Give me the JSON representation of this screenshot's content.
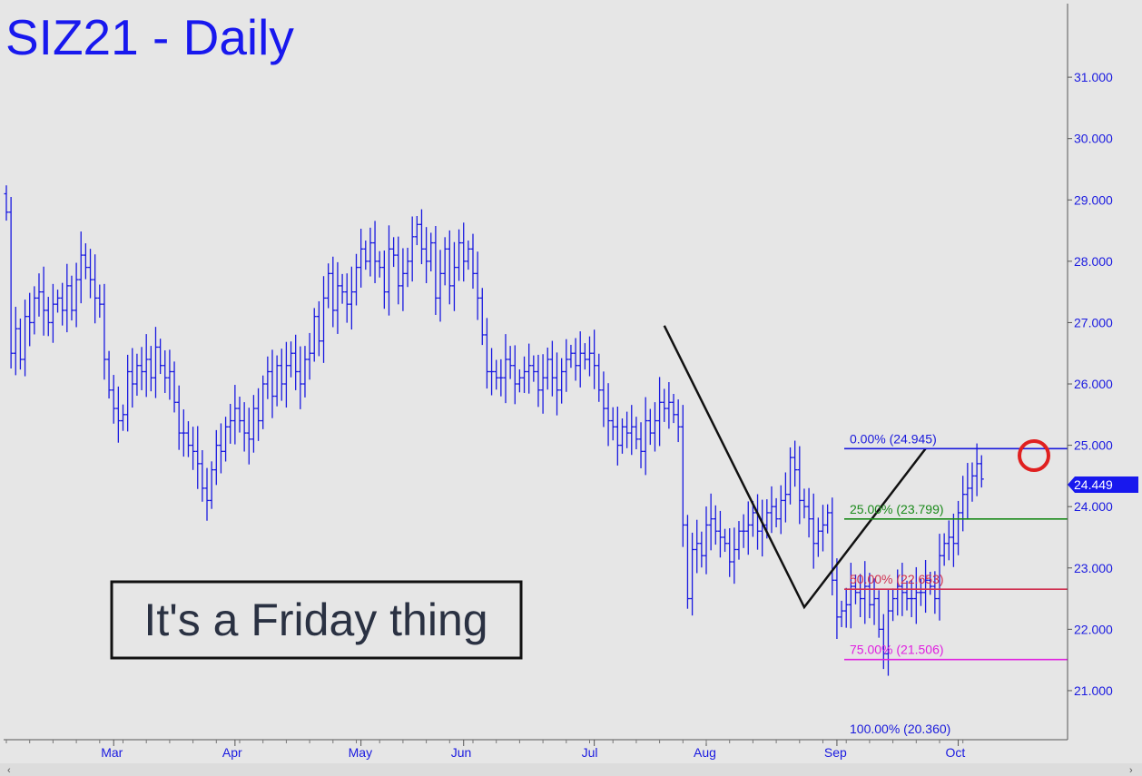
{
  "chart_data": {
    "type": "ohlc",
    "title": "SIZ21 - Daily",
    "annotation_box": "It's a Friday thing",
    "last_price_label": "24.449",
    "ylim": [
      20.2,
      32.2
    ],
    "y_ticks": [
      "21.000",
      "22.000",
      "23.000",
      "24.000",
      "25.000",
      "26.000",
      "27.000",
      "28.000",
      "29.000",
      "30.000",
      "31.000"
    ],
    "x_ticks": [
      "Mar",
      "Apr",
      "May",
      "Jun",
      "Jul",
      "Aug",
      "Sep",
      "Oct"
    ],
    "fib_levels": [
      {
        "label": "0.00% (24.945)",
        "price": 24.945,
        "color": "#1a1adc"
      },
      {
        "label": "25.00% (23.799)",
        "price": 23.799,
        "color": "#1a8a1a"
      },
      {
        "label": "50.00% (22.653)",
        "price": 22.653,
        "color": "#d03050"
      },
      {
        "label": "75.00% (21.506)",
        "price": 21.506,
        "color": "#e020e0"
      },
      {
        "label": "100.00% (20.360)",
        "price": 20.36,
        "color": "#1a1adc"
      }
    ],
    "pattern_points": [
      {
        "bar": 141,
        "price": 26.95
      },
      {
        "bar": 171,
        "price": 22.36
      },
      {
        "bar": 197,
        "price": 24.945
      }
    ],
    "closes": [
      28.8,
      26.5,
      26.9,
      26.4,
      27.1,
      27.0,
      27.4,
      27.5,
      27.2,
      27.0,
      27.3,
      27.4,
      27.2,
      27.6,
      27.2,
      27.7,
      28.1,
      27.9,
      27.7,
      27.4,
      27.3,
      26.4,
      25.9,
      25.6,
      25.4,
      25.5,
      26.2,
      26.0,
      26.3,
      26.2,
      26.4,
      26.1,
      26.6,
      26.3,
      26.1,
      26.2,
      25.7,
      25.2,
      25.2,
      25.0,
      24.9,
      24.7,
      24.3,
      24.1,
      24.6,
      25.0,
      24.9,
      25.3,
      25.4,
      25.6,
      25.4,
      25.2,
      25.1,
      25.6,
      25.4,
      26.0,
      26.2,
      25.8,
      26.3,
      26.0,
      26.3,
      26.5,
      26.2,
      26.0,
      26.4,
      26.5,
      27.1,
      26.7,
      27.4,
      27.8,
      27.2,
      27.6,
      27.5,
      27.3,
      27.5,
      27.9,
      28.2,
      28.0,
      28.3,
      28.0,
      27.9,
      27.5,
      28.2,
      28.1,
      27.6,
      27.8,
      28.0,
      28.4,
      28.6,
      28.2,
      28.0,
      28.3,
      27.4,
      27.8,
      28.2,
      27.6,
      27.9,
      28.3,
      28.0,
      28.2,
      27.8,
      27.4,
      26.8,
      26.2,
      26.2,
      26.1,
      26.1,
      26.4,
      26.3,
      26.0,
      26.1,
      26.2,
      26.3,
      26.2,
      25.9,
      26.1,
      26.4,
      26.1,
      25.9,
      26.2,
      26.4,
      26.5,
      26.3,
      26.5,
      26.4,
      26.5,
      26.3,
      25.9,
      25.6,
      25.4,
      25.3,
      25.0,
      25.3,
      25.2,
      25.3,
      25.1,
      24.9,
      25.4,
      25.2,
      25.4,
      25.7,
      25.6,
      25.7,
      25.5,
      25.3,
      23.7,
      22.5,
      23.3,
      23.4,
      23.2,
      23.7,
      23.8,
      23.6,
      23.5,
      23.4,
      23.1,
      23.3,
      23.6,
      23.6,
      23.7,
      23.9,
      23.6,
      23.7,
      23.9,
      24.0,
      23.8,
      24.1,
      24.2,
      24.8,
      24.6,
      24.1,
      24.0,
      23.8,
      23.4,
      23.6,
      23.7,
      23.9,
      22.8,
      22.2,
      22.3,
      22.4,
      22.7,
      22.6,
      22.5,
      22.7,
      22.4,
      22.5,
      22.0,
      21.6,
      22.3,
      22.5,
      22.7,
      22.6,
      22.5,
      22.5,
      22.6,
      22.6,
      22.8,
      22.7,
      22.5,
      23.2,
      23.4,
      23.5,
      23.4,
      23.9,
      24.2,
      24.3,
      24.5,
      24.7,
      24.449
    ]
  }
}
